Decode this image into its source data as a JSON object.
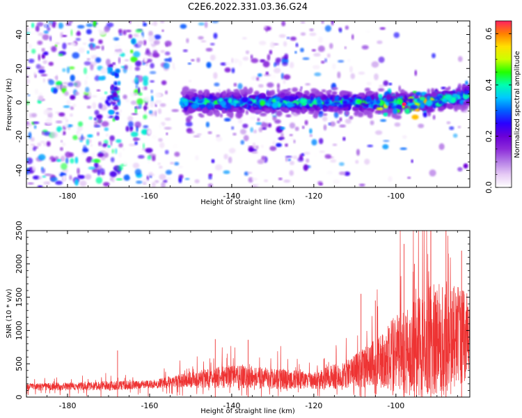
{
  "title": "C2E6.2022.331.03.36.G24",
  "chart_data": [
    {
      "type": "heatmap",
      "xlabel": "Height of straight line (km)",
      "ylabel": "Frequency (Hz)",
      "xlim": [
        -190,
        -82
      ],
      "ylim": [
        -50,
        48
      ],
      "xticks": [
        -180,
        -160,
        -140,
        -120,
        -100
      ],
      "xtick_labels": [
        "-180",
        "-160",
        "-140",
        "-120",
        "-100"
      ],
      "yticks": [
        -40,
        -20,
        0,
        20,
        40
      ],
      "ytick_labels": [
        "-40",
        "-20",
        "0",
        "20",
        "40"
      ],
      "colorbar": {
        "label": "Normalized spectral amplitude",
        "range": [
          0,
          0.65
        ],
        "ticks": [
          0.0,
          0.2,
          0.4,
          0.6
        ],
        "tick_labels": [
          "0.0",
          "0.2",
          "0.4",
          "0.6"
        ],
        "colormap": [
          "#ffffff",
          "#e6cbf5",
          "#b57ee6",
          "#8c2bd9",
          "#6a00d8",
          "#2a00ff",
          "#0060ff",
          "#00c8ff",
          "#00ffb0",
          "#22ff00",
          "#ccff00",
          "#ffe000",
          "#ff8000",
          "#ff2060"
        ]
      },
      "ridge": {
        "frequency": 0,
        "from_height": -152,
        "to_height": -82,
        "peak_height": -98
      }
    },
    {
      "type": "line",
      "xlabel": "Height of straight line (km)",
      "ylabel": "SNR (10 * v/v)",
      "xlim": [
        -190,
        -82
      ],
      "ylim": [
        0,
        2500
      ],
      "xticks": [
        -180,
        -160,
        -140,
        -120,
        -100
      ],
      "xtick_labels": [
        "-180",
        "-160",
        "-140",
        "-120",
        "-100"
      ],
      "yticks": [
        0,
        500,
        1000,
        1500,
        2000,
        2500
      ],
      "ytick_labels": [
        "0",
        "500",
        "1000",
        "1500",
        "2000",
        "2500"
      ],
      "color": "#ee3333",
      "envelope": [
        {
          "x": -190,
          "base": 150,
          "spread": 80
        },
        {
          "x": -170,
          "base": 170,
          "spread": 110
        },
        {
          "x": -160,
          "base": 190,
          "spread": 90
        },
        {
          "x": -150,
          "base": 260,
          "spread": 180
        },
        {
          "x": -140,
          "base": 310,
          "spread": 280
        },
        {
          "x": -130,
          "base": 280,
          "spread": 250
        },
        {
          "x": -120,
          "base": 250,
          "spread": 200
        },
        {
          "x": -112,
          "base": 360,
          "spread": 350
        },
        {
          "x": -105,
          "base": 520,
          "spread": 550
        },
        {
          "x": -100,
          "base": 650,
          "spread": 900
        },
        {
          "x": -95,
          "base": 800,
          "spread": 1300
        },
        {
          "x": -90,
          "base": 900,
          "spread": 1300
        },
        {
          "x": -85,
          "base": 950,
          "spread": 1200
        },
        {
          "x": -82,
          "base": 900,
          "spread": 1000
        }
      ],
      "spikes": [
        {
          "x": -167.8,
          "y": 700
        },
        {
          "x": -144,
          "y": 870
        },
        {
          "x": -136,
          "y": 860
        },
        {
          "x": -108.5,
          "y": 1550
        },
        {
          "x": -105,
          "y": 1450
        },
        {
          "x": -98,
          "y": 2300
        },
        {
          "x": -95.5,
          "y": 2000
        },
        {
          "x": -91.5,
          "y": 2500
        },
        {
          "x": -87.8,
          "y": 2500
        },
        {
          "x": -84,
          "y": 2200
        }
      ]
    }
  ]
}
